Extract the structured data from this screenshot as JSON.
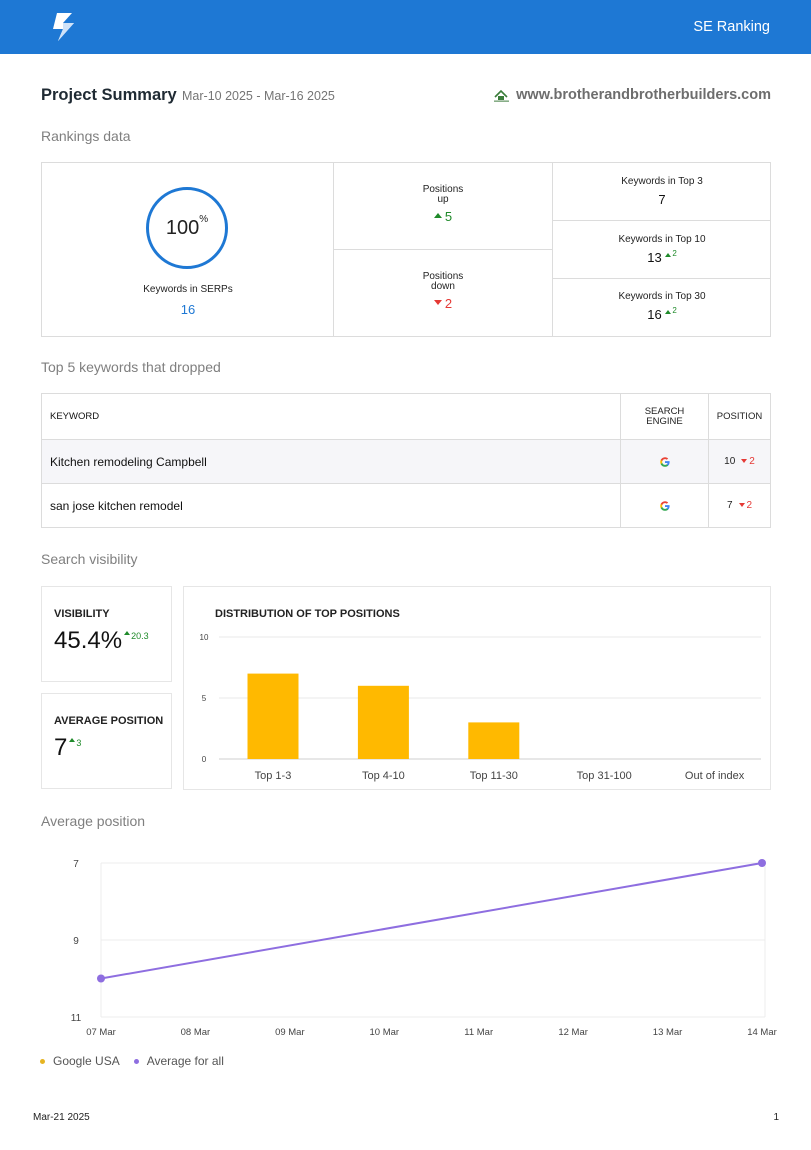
{
  "header": {
    "brand": "SE Ranking"
  },
  "summary": {
    "title": "Project Summary",
    "date_range": "Mar-10 2025 - Mar-16 2025",
    "site": "www.brotherandbrotherbuilders.com"
  },
  "rankings": {
    "section_title": "Rankings data",
    "serp_percent": "100",
    "serp_percent_unit": "%",
    "serp_label": "Keywords in SERPs",
    "serp_count": "16",
    "positions_up_label_1": "Positions",
    "positions_up_label_2": "up",
    "positions_up_value": "5",
    "positions_down_label_1": "Positions",
    "positions_down_label_2": "down",
    "positions_down_value": "2",
    "top3_label": "Keywords in Top 3",
    "top3_value": "7",
    "top10_label": "Keywords in Top 10",
    "top10_value": "13",
    "top10_delta": "2",
    "top30_label": "Keywords in Top 30",
    "top30_value": "16",
    "top30_delta": "2"
  },
  "dropped": {
    "section_title": "Top 5 keywords that dropped",
    "headers": {
      "keyword": "KEYWORD",
      "engine_1": "SEARCH",
      "engine_2": "ENGINE",
      "position": "POSITION"
    },
    "rows": [
      {
        "keyword": "Kitchen remodeling Campbell",
        "position": "10",
        "delta": "2"
      },
      {
        "keyword": "san jose kitchen remodel",
        "position": "7",
        "delta": "2"
      }
    ]
  },
  "visibility": {
    "section_title": "Search visibility",
    "visibility_label": "VISIBILITY",
    "visibility_value": "45.4%",
    "visibility_delta": "20.3",
    "avg_label": "AVERAGE POSITION",
    "avg_value": "7",
    "avg_delta": "3"
  },
  "avg_position": {
    "section_title": "Average position"
  },
  "legend": {
    "item1": "Google USA",
    "item2": "Average for all"
  },
  "footer": {
    "date": "Mar-21 2025",
    "page": "1"
  },
  "colors": {
    "brand": "#1e78d4",
    "bar": "#ffb900",
    "line": "#8e6ee0",
    "legend_google": "#e6b422",
    "up": "#1f8a2a",
    "down": "#e53935"
  },
  "chart_data": [
    {
      "type": "bar",
      "title": "DISTRIBUTION OF TOP POSITIONS",
      "categories": [
        "Top 1-3",
        "Top 4-10",
        "Top 11-30",
        "Top 31-100",
        "Out of index"
      ],
      "values": [
        7,
        6,
        3,
        0,
        0
      ],
      "yticks": [
        0,
        5,
        10
      ],
      "ylim": [
        0,
        10
      ],
      "grid": true
    },
    {
      "type": "line",
      "title": "",
      "x": [
        "07 Mar",
        "08 Mar",
        "09 Mar",
        "10 Mar",
        "11 Mar",
        "12 Mar",
        "13 Mar",
        "14 Mar"
      ],
      "yticks": [
        7,
        9,
        11
      ],
      "ylim": [
        11,
        7
      ],
      "y_inverted": true,
      "grid": true,
      "series": [
        {
          "name": "Average for all",
          "points": [
            {
              "x": "07 Mar",
              "y": 10.0
            },
            {
              "x": "14 Mar",
              "y": 7.0
            }
          ]
        }
      ],
      "legend": [
        "Google USA",
        "Average for all"
      ],
      "legend_position": "bottom-left"
    }
  ]
}
